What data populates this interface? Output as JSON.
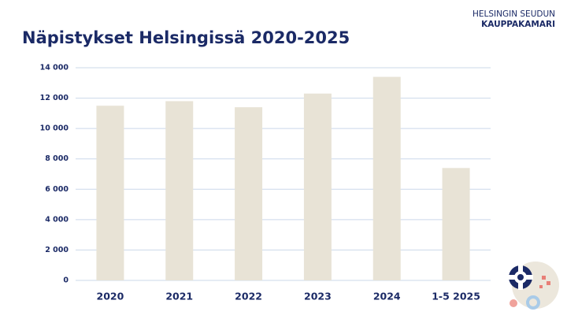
{
  "logo": {
    "line1": "HELSINGIN SEUDUN",
    "line2": "KAUPPAKAMARI"
  },
  "chart_data": {
    "type": "bar",
    "title": "Näpistykset Helsingissä 2020-2025",
    "categories": [
      "2020",
      "2021",
      "2022",
      "2023",
      "2024",
      "1-5 2025"
    ],
    "values": [
      11500,
      11800,
      11400,
      12300,
      13400,
      7400
    ],
    "color": "#e8e3d6",
    "ylim": [
      0,
      14000
    ],
    "yticks": [
      0,
      {
        "value": 2000,
        "label": "2 000"
      },
      {
        "value": 4000,
        "label": "4 000"
      },
      {
        "value": 6000,
        "label": "6 000"
      },
      {
        "value": 8000,
        "label": "8 000"
      },
      {
        "value": 10000,
        "label": "10 000"
      },
      {
        "value": 12000,
        "label": "12 000"
      },
      {
        "value": 14000,
        "label": "14 000"
      }
    ],
    "grid": true
  }
}
